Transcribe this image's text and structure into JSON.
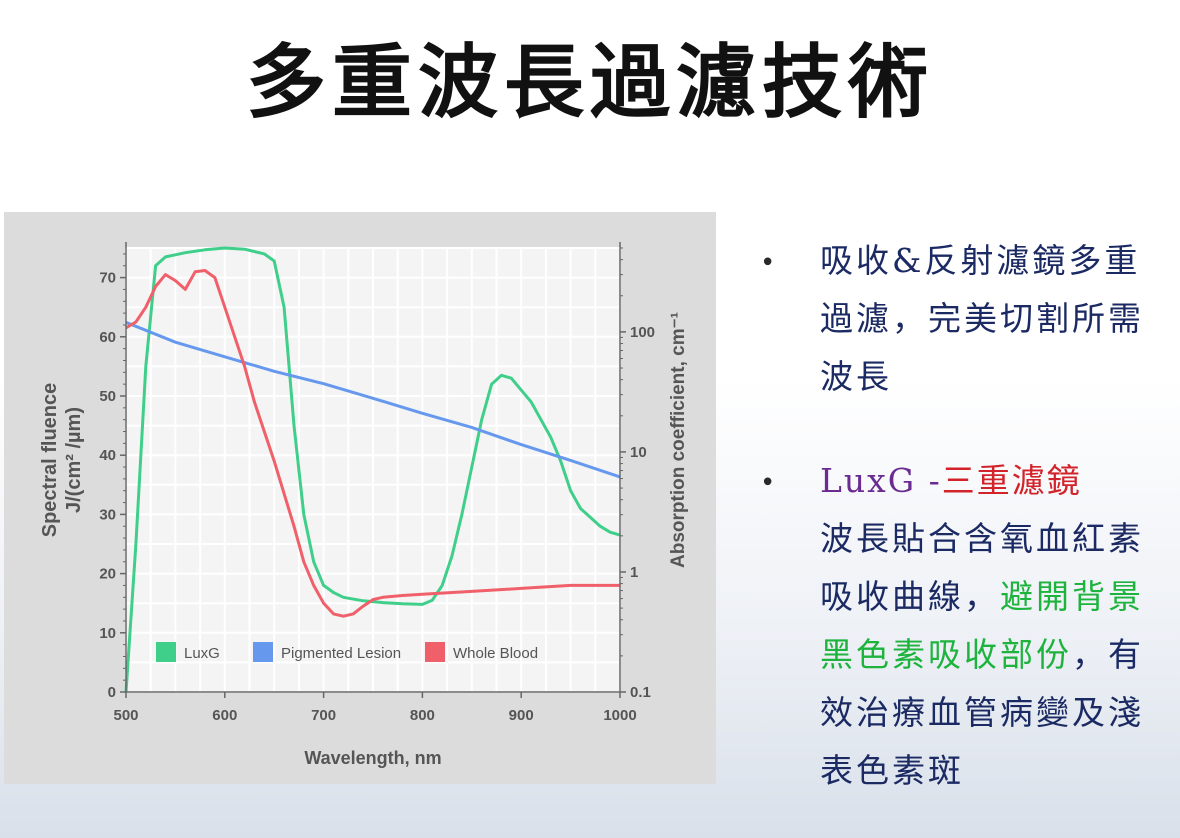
{
  "title": "多重波長過濾技術",
  "bullets": [
    {
      "text": "吸收&反射濾鏡多重過濾，完美切割所需波長"
    },
    {
      "head_a": "LuxG -",
      "head_b": "三重濾鏡",
      "body_a": "波長貼合含氧血紅素吸收曲線，",
      "body_b": "避開背景黑色素吸收部份",
      "body_c": "，有效治療血管病變及淺表色素斑"
    }
  ],
  "colors": {
    "luxg": "#3fcf8a",
    "pigmented": "#6699ee",
    "blood": "#f0606a",
    "purple": "#6a2c91",
    "red": "#d2232a",
    "green": "#1db33d",
    "navy": "#1b2a63"
  },
  "chart_data": {
    "type": "line",
    "xlabel": "Wavelength, nm",
    "ylabel_left_line1": "Spectral fluence",
    "ylabel_left_line2": "J/(cm² /µm)",
    "ylabel_right": "Absorption coefficient, cm⁻¹",
    "xlim": [
      500,
      1000
    ],
    "ylim_left": [
      0,
      75
    ],
    "ylim_right_log": [
      0.1,
      500
    ],
    "x_ticks": [
      "500",
      "600",
      "700",
      "800",
      "900",
      "1000"
    ],
    "y_left_ticks": [
      "0",
      "10",
      "20",
      "30",
      "40",
      "50",
      "60",
      "70"
    ],
    "y_right_ticks": [
      "0.1",
      "1",
      "10",
      "100"
    ],
    "grid": true,
    "legend_position": "bottom-left",
    "series": [
      {
        "name": "LuxG",
        "axis": "left",
        "color": "#3fcf8a",
        "points": [
          [
            500,
            0
          ],
          [
            510,
            25
          ],
          [
            520,
            55
          ],
          [
            530,
            72
          ],
          [
            540,
            73.5
          ],
          [
            560,
            74.2
          ],
          [
            580,
            74.7
          ],
          [
            600,
            75
          ],
          [
            620,
            74.8
          ],
          [
            640,
            74
          ],
          [
            650,
            72.8
          ],
          [
            660,
            65
          ],
          [
            670,
            45
          ],
          [
            680,
            30
          ],
          [
            690,
            22
          ],
          [
            700,
            18
          ],
          [
            710,
            16.8
          ],
          [
            720,
            16
          ],
          [
            740,
            15.4
          ],
          [
            760,
            15.1
          ],
          [
            780,
            14.9
          ],
          [
            800,
            14.8
          ],
          [
            810,
            15.5
          ],
          [
            820,
            18
          ],
          [
            830,
            23
          ],
          [
            840,
            30
          ],
          [
            850,
            38
          ],
          [
            860,
            46
          ],
          [
            870,
            52
          ],
          [
            880,
            53.5
          ],
          [
            890,
            53
          ],
          [
            900,
            51
          ],
          [
            910,
            49
          ],
          [
            920,
            46
          ],
          [
            930,
            43
          ],
          [
            940,
            39
          ],
          [
            950,
            34
          ],
          [
            960,
            31
          ],
          [
            970,
            29.5
          ],
          [
            980,
            28
          ],
          [
            990,
            27
          ],
          [
            1000,
            26.5
          ]
        ]
      },
      {
        "name": "Pigmented Lesion",
        "axis": "right",
        "color": "#6699ee",
        "points": [
          [
            500,
            120
          ],
          [
            550,
            82
          ],
          [
            600,
            62
          ],
          [
            650,
            47
          ],
          [
            700,
            37
          ],
          [
            750,
            28
          ],
          [
            800,
            21
          ],
          [
            850,
            16
          ],
          [
            900,
            11.5
          ],
          [
            950,
            8.5
          ],
          [
            1000,
            6.2
          ]
        ]
      },
      {
        "name": "Whole Blood",
        "axis": "left",
        "color": "#f0606a",
        "points": [
          [
            500,
            61.5
          ],
          [
            510,
            62.5
          ],
          [
            520,
            65
          ],
          [
            530,
            68.5
          ],
          [
            540,
            70.5
          ],
          [
            550,
            69.5
          ],
          [
            560,
            68
          ],
          [
            570,
            71
          ],
          [
            580,
            71.2
          ],
          [
            590,
            70
          ],
          [
            600,
            65
          ],
          [
            610,
            60
          ],
          [
            620,
            55
          ],
          [
            630,
            49
          ],
          [
            640,
            44
          ],
          [
            650,
            39
          ],
          [
            660,
            33.5
          ],
          [
            670,
            28
          ],
          [
            680,
            22
          ],
          [
            690,
            18
          ],
          [
            700,
            15
          ],
          [
            710,
            13.2
          ],
          [
            720,
            12.8
          ],
          [
            730,
            13.2
          ],
          [
            740,
            14.5
          ],
          [
            750,
            15.6
          ],
          [
            760,
            16
          ],
          [
            780,
            16.3
          ],
          [
            800,
            16.5
          ],
          [
            850,
            17
          ],
          [
            900,
            17.5
          ],
          [
            950,
            18
          ],
          [
            1000,
            18
          ]
        ]
      }
    ]
  }
}
